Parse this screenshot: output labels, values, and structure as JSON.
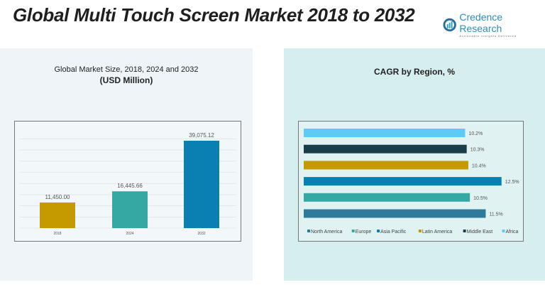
{
  "header": {
    "title": "Global Multi Touch Screen Market 2018 to 2032",
    "logo_name": "Credence Research",
    "logo_tagline": "Actionable Insights Delivered"
  },
  "chart_data": [
    {
      "type": "bar",
      "title": "Global Market Size, 2018, 2024 and 2032",
      "subtitle": "(USD Million)",
      "categories": [
        "2018",
        "2024",
        "2032"
      ],
      "values": [
        11450.0,
        16445.66,
        39075.12
      ],
      "labels": [
        "11,450.00",
        "16,445.66",
        "39,075.12"
      ],
      "colors": [
        "#c49a00",
        "#35a8a4",
        "#0a7fb2"
      ],
      "grid": true
    },
    {
      "type": "bar",
      "orientation": "horizontal",
      "title": "CAGR by Region, %",
      "categories": [
        "North America",
        "Europe",
        "Asia Pacific",
        "Latin America",
        "Middle East",
        "Africa"
      ],
      "values": [
        11.5,
        10.5,
        12.5,
        10.4,
        10.3,
        10.2
      ],
      "labels": [
        "11.5%",
        "10.5%",
        "12.5%",
        "10.4%",
        "10.3%",
        "10.2%"
      ],
      "colors": [
        "#2e7a9a",
        "#35a8a4",
        "#0a7fb2",
        "#c49a00",
        "#1a3d4a",
        "#5dccf5"
      ],
      "legend": "bottom"
    }
  ]
}
